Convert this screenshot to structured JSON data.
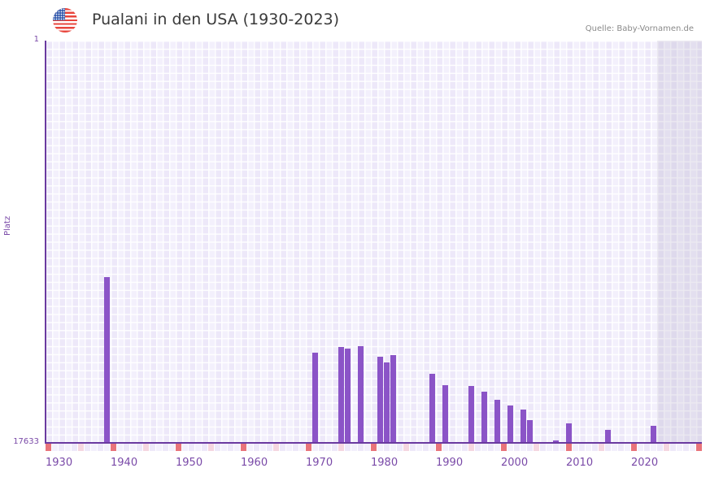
{
  "header": {
    "title": "Pualani in den USA (1930-2023)",
    "source": "Quelle: Baby-Vornamen.de",
    "flag_icon": "us-flag-icon"
  },
  "colors": {
    "bar": "#8b54c7",
    "axis": "#6a3aa0",
    "decade_marker": "#e8737a",
    "half_decade_marker": "#f5d6e0",
    "grid_bg": "#f1edfb"
  },
  "chart_data": {
    "type": "bar",
    "title": "Pualani in den USA (1930-2023)",
    "xlabel": "",
    "ylabel": "Platz",
    "y_inverted": true,
    "ylim": [
      1,
      17633
    ],
    "xlim": [
      1930,
      2030
    ],
    "y_tick_labels": [
      "1",
      "17633"
    ],
    "x_tick_labels": [
      "1930",
      "1940",
      "1950",
      "1960",
      "1970",
      "1980",
      "1990",
      "2000",
      "2010",
      "2020"
    ],
    "grid": true,
    "future_shaded_range": [
      2024,
      2030
    ],
    "categories": [
      1939,
      1971,
      1975,
      1976,
      1978,
      1981,
      1982,
      1983,
      1989,
      1991,
      1995,
      1997,
      1999,
      2001,
      2003,
      2004,
      2008,
      2010,
      2016,
      2023
    ],
    "series": [
      {
        "name": "Platz",
        "values": [
          10366,
          13678,
          13429,
          13500,
          13393,
          13857,
          14106,
          13785,
          14604,
          15103,
          15139,
          15388,
          15744,
          15993,
          16172,
          16635,
          17525,
          16777,
          17062,
          16884
        ]
      }
    ]
  }
}
